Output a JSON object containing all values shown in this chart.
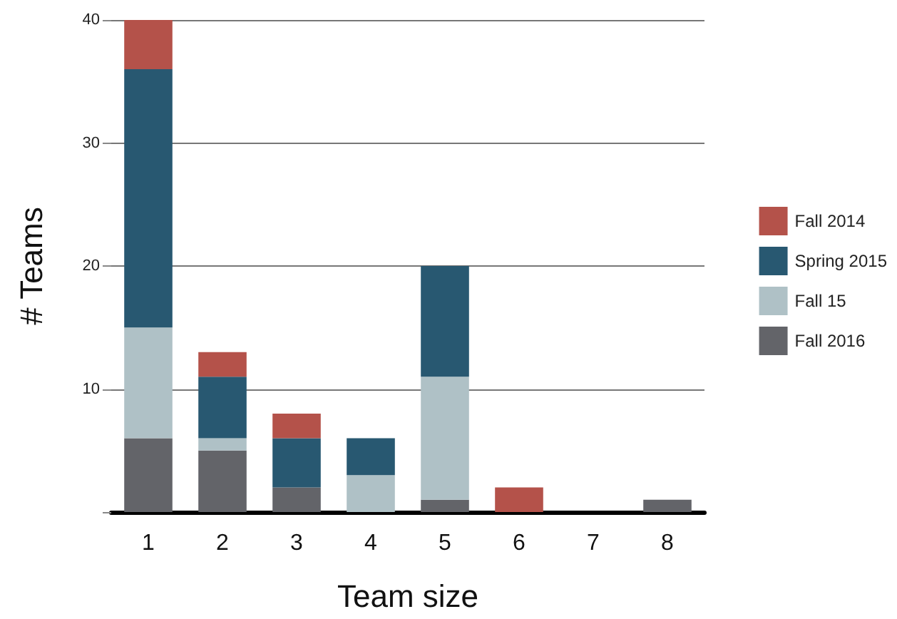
{
  "chart_data": {
    "type": "bar",
    "xlabel": "Team size",
    "ylabel": "# Teams",
    "categories": [
      "1",
      "2",
      "3",
      "4",
      "5",
      "6",
      "7",
      "8"
    ],
    "stacked": true,
    "series": [
      {
        "name": "Fall 2016",
        "color": "#636469",
        "values": [
          6,
          5,
          2,
          0,
          1,
          0,
          0,
          1
        ]
      },
      {
        "name": "Fall 15",
        "color": "#afc1c6",
        "values": [
          9,
          1,
          0,
          3,
          10,
          0,
          0,
          0
        ]
      },
      {
        "name": "Spring 2015",
        "color": "#285871",
        "values": [
          21,
          5,
          4,
          3,
          9,
          0,
          0,
          0
        ]
      },
      {
        "name": "Fall 2014",
        "color": "#b4524a",
        "values": [
          4,
          2,
          2,
          0,
          0,
          2,
          0,
          0
        ]
      }
    ],
    "ylim": [
      0,
      40
    ],
    "yticks": [
      {
        "value": 0,
        "label": null
      },
      10,
      20,
      30,
      40
    ],
    "grid": "y",
    "legend": "right"
  }
}
